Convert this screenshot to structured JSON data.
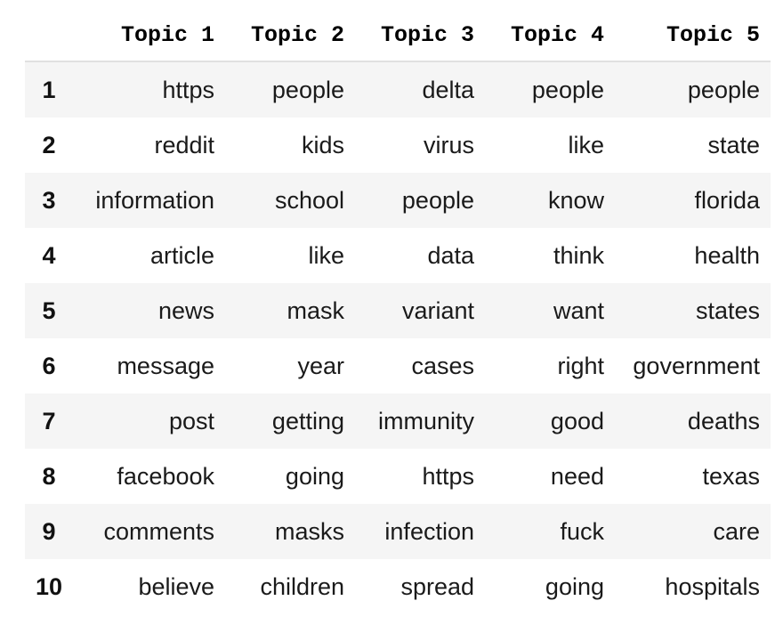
{
  "columns": [
    "",
    "Topic 1",
    "Topic 2",
    "Topic 3",
    "Topic 4",
    "Topic 5"
  ],
  "rows": [
    {
      "index": "1",
      "cells": [
        "https",
        "people",
        "delta",
        "people",
        "people"
      ]
    },
    {
      "index": "2",
      "cells": [
        "reddit",
        "kids",
        "virus",
        "like",
        "state"
      ]
    },
    {
      "index": "3",
      "cells": [
        "information",
        "school",
        "people",
        "know",
        "florida"
      ]
    },
    {
      "index": "4",
      "cells": [
        "article",
        "like",
        "data",
        "think",
        "health"
      ]
    },
    {
      "index": "5",
      "cells": [
        "news",
        "mask",
        "variant",
        "want",
        "states"
      ]
    },
    {
      "index": "6",
      "cells": [
        "message",
        "year",
        "cases",
        "right",
        "government"
      ]
    },
    {
      "index": "7",
      "cells": [
        "post",
        "getting",
        "immunity",
        "good",
        "deaths"
      ]
    },
    {
      "index": "8",
      "cells": [
        "facebook",
        "going",
        "https",
        "need",
        "texas"
      ]
    },
    {
      "index": "9",
      "cells": [
        "comments",
        "masks",
        "infection",
        "fuck",
        "care"
      ]
    },
    {
      "index": "10",
      "cells": [
        "believe",
        "children",
        "spread",
        "going",
        "hospitals"
      ]
    }
  ],
  "colors": {
    "stripe": "#f5f5f5",
    "header_rule": "#e0e0e0"
  }
}
